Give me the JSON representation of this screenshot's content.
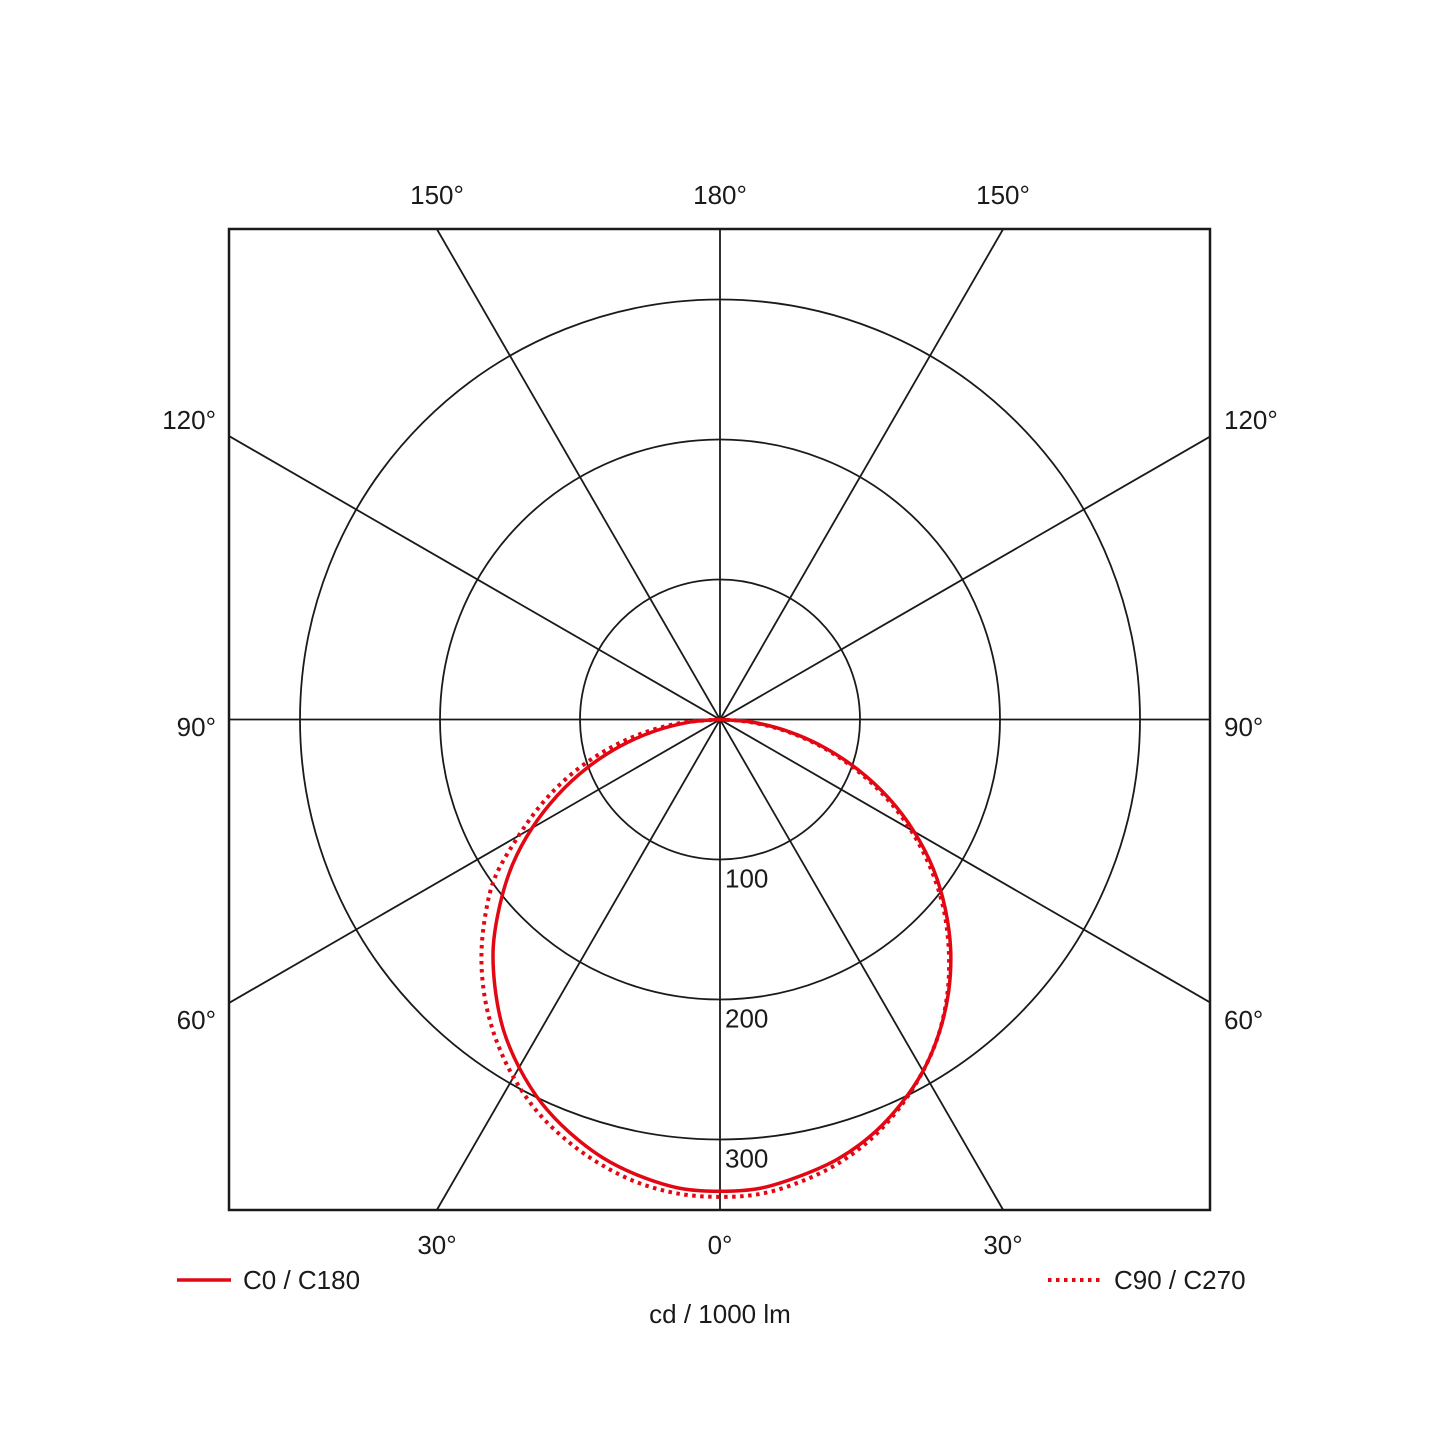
{
  "chart_data": {
    "type": "polar",
    "unit_label": "cd / 1000 lm",
    "radial_ticks": [
      100,
      200,
      300
    ],
    "radial_max": 350,
    "angle_ticks": {
      "top": [
        "150°",
        "180°",
        "150°"
      ],
      "left": [
        "120°",
        "90°",
        "60°"
      ],
      "right": [
        "120°",
        "90°",
        "60°"
      ],
      "bottom": [
        "30°",
        "0°",
        "30°"
      ]
    },
    "spoke_step_deg": 30,
    "grid": true,
    "legend_placement": "bottom",
    "angles_deg": [
      0,
      5,
      10,
      15,
      20,
      25,
      30,
      35,
      40,
      45,
      50,
      55,
      60,
      65,
      70,
      75,
      80,
      85,
      90
    ],
    "series": [
      {
        "name": "C0 / C180",
        "style": "solid",
        "color": "#e30613",
        "left": [
          337,
          336,
          331,
          324,
          314,
          302,
          287,
          270,
          250,
          229,
          205,
          181,
          155,
          128,
          101,
          74,
          47,
          22,
          0
        ],
        "right": [
          337,
          336,
          331,
          325,
          316,
          304,
          290,
          273,
          254,
          233,
          210,
          186,
          160,
          133,
          105,
          77,
          50,
          24,
          0
        ]
      },
      {
        "name": "C90 / C270",
        "style": "dotted",
        "color": "#e30613",
        "left": [
          341,
          340,
          336,
          329,
          320,
          309,
          295,
          279,
          261,
          241,
          219,
          196,
          166,
          139,
          112,
          84,
          56,
          28,
          0
        ],
        "right": [
          341,
          340,
          335,
          328,
          318,
          305,
          290,
          273,
          253,
          231,
          208,
          183,
          157,
          130,
          102,
          75,
          48,
          22,
          0
        ]
      }
    ]
  }
}
